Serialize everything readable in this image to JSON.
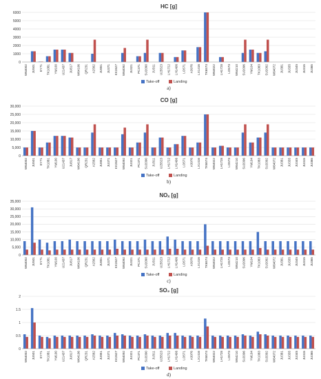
{
  "chart_data": [
    {
      "type": "bar",
      "title": "HC [g]",
      "caption": "a)",
      "ylim": [
        0,
        6000
      ],
      "ytick_labels": [
        "0",
        "1000",
        "2000",
        "3000",
        "4000",
        "5000",
        "6000"
      ],
      "ytick_values": [
        0,
        1000,
        2000,
        3000,
        4000,
        5000,
        6000
      ],
      "grid": true,
      "legend": "bottom",
      "categories": [
        "W64002",
        "JU501",
        "EY71",
        "TK1081",
        "YM100",
        "U21437",
        "JU817",
        "W64106",
        "QR231",
        "A2562",
        "JU851",
        "JU371",
        "KK2627",
        "W64092",
        "JU321",
        "PC371",
        "SU2090",
        "JU311",
        "U25523",
        "LH1722",
        "LH1406",
        "LO571",
        "A3976",
        "LX1416",
        "TK6574",
        "W64022",
        "LH1728",
        "LO573",
        "W64210",
        "SU2096",
        "YM104",
        "TK1083",
        "SU2092",
        "W64072",
        "JU381",
        "JU335",
        "JU345",
        "JU315",
        "JU365"
      ],
      "series": [
        {
          "name": "Take-off",
          "color": "#4472C4",
          "values": [
            0,
            1300,
            50,
            700,
            1500,
            1500,
            1100,
            0,
            0,
            1000,
            0,
            0,
            0,
            1100,
            0,
            700,
            1100,
            0,
            1100,
            0,
            600,
            1400,
            0,
            1800,
            6000,
            0,
            600,
            0,
            0,
            1100,
            1500,
            1100,
            1300,
            0,
            0,
            0,
            0,
            0,
            0
          ]
        },
        {
          "name": "Landing",
          "color": "#C0504D",
          "values": [
            0,
            1300,
            50,
            700,
            1500,
            1500,
            1100,
            0,
            0,
            2700,
            0,
            0,
            0,
            1700,
            0,
            700,
            2700,
            0,
            1100,
            0,
            600,
            1400,
            0,
            1800,
            6000,
            0,
            600,
            0,
            0,
            2700,
            1500,
            1100,
            2700,
            0,
            0,
            0,
            0,
            0,
            0
          ]
        }
      ]
    },
    {
      "type": "bar",
      "title": "CO [g]",
      "caption": "b)",
      "ylim": [
        0,
        30000
      ],
      "ytick_labels": [
        "0",
        "5,000",
        "10,000",
        "15,000",
        "20,000",
        "25,000",
        "30,000"
      ],
      "ytick_values": [
        0,
        5000,
        10000,
        15000,
        20000,
        25000,
        30000
      ],
      "grid": true,
      "legend": "bottom",
      "categories": [
        "W64002",
        "JU501",
        "EY71",
        "TK1081",
        "YM100",
        "U21437",
        "JU817",
        "W64106",
        "QR231",
        "A2562",
        "JU851",
        "JU371",
        "KK2627",
        "W64092",
        "JU321",
        "PC371",
        "SU2090",
        "JU311",
        "U25523",
        "LH1722",
        "LH1406",
        "LO571",
        "A3976",
        "LX1416",
        "TK6574",
        "W64022",
        "LH1728",
        "LO573",
        "W64210",
        "SU2096",
        "YM104",
        "TK1083",
        "SU2092",
        "W64072",
        "JU381",
        "JU335",
        "JU345",
        "JU315",
        "JU365"
      ],
      "series": [
        {
          "name": "Take-off",
          "color": "#4472C4",
          "values": [
            5000,
            15000,
            5000,
            8000,
            12000,
            12000,
            11000,
            5000,
            5000,
            14000,
            5000,
            5000,
            5000,
            13000,
            5000,
            8000,
            14000,
            5000,
            11000,
            5000,
            7000,
            12000,
            5000,
            8000,
            25000,
            5000,
            6000,
            5000,
            5000,
            14000,
            8000,
            11000,
            14000,
            5000,
            5000,
            5000,
            5000,
            5000,
            5000
          ]
        },
        {
          "name": "Landing",
          "color": "#C0504D",
          "values": [
            5000,
            15000,
            5000,
            8000,
            12000,
            12000,
            11000,
            5000,
            5000,
            19000,
            5000,
            5000,
            5000,
            17000,
            5000,
            8000,
            19000,
            5000,
            11000,
            5000,
            7000,
            12000,
            5000,
            8000,
            25000,
            5000,
            6000,
            5000,
            5000,
            19000,
            8000,
            11000,
            19000,
            5000,
            5000,
            5000,
            5000,
            5000,
            5000
          ]
        }
      ]
    },
    {
      "type": "bar",
      "title": "NOₓ [g]",
      "caption": "c)",
      "ylim": [
        0,
        35000
      ],
      "ytick_labels": [
        "0",
        "5,000",
        "10,000",
        "15,000",
        "20,000",
        "25,000",
        "30,000",
        "35,000"
      ],
      "ytick_values": [
        0,
        5000,
        10000,
        15000,
        20000,
        25000,
        30000,
        35000
      ],
      "grid": true,
      "legend": "bottom",
      "categories": [
        "W64002",
        "JU501",
        "EY71",
        "TK1081",
        "YM100",
        "U21437",
        "JU817",
        "W64106",
        "QR231",
        "A2562",
        "JU851",
        "JU371",
        "KK2627",
        "W64092",
        "JU321",
        "PC371",
        "SU2090",
        "JU311",
        "U25523",
        "LH1722",
        "LH1406",
        "LO571",
        "A3976",
        "LX1416",
        "TK6574",
        "W64022",
        "LH1728",
        "LO573",
        "W64210",
        "SU2096",
        "YM104",
        "TK1083",
        "SU2092",
        "W64072",
        "JU381",
        "JU335",
        "JU345",
        "JU315",
        "JU365"
      ],
      "series": [
        {
          "name": "Take-off",
          "color": "#4472C4",
          "values": [
            9000,
            31000,
            10000,
            8000,
            9000,
            9000,
            10000,
            9000,
            9000,
            9000,
            9000,
            9000,
            10000,
            9000,
            9000,
            9000,
            10000,
            9000,
            9000,
            12000,
            10000,
            9000,
            9000,
            9000,
            20000,
            9000,
            9000,
            9000,
            9000,
            9000,
            9000,
            15000,
            9000,
            9000,
            9000,
            9000,
            9000,
            9000,
            9000
          ]
        },
        {
          "name": "Landing",
          "color": "#C0504D",
          "values": [
            3500,
            8000,
            3500,
            3000,
            3500,
            3500,
            3500,
            3500,
            3500,
            3500,
            3500,
            3500,
            4000,
            3500,
            3500,
            3500,
            3500,
            3500,
            3500,
            4000,
            4000,
            3500,
            3500,
            3500,
            6000,
            3500,
            3500,
            3500,
            3500,
            3500,
            3500,
            4500,
            3500,
            3500,
            3500,
            3500,
            3500,
            3500,
            3500
          ]
        }
      ]
    },
    {
      "type": "bar",
      "title": "SO₂ [g]",
      "caption": "d)",
      "ylim": [
        0,
        2
      ],
      "ytick_labels": [
        "0",
        "0.5",
        "1",
        "1.5",
        "2"
      ],
      "ytick_values": [
        0,
        0.5,
        1,
        1.5,
        2
      ],
      "grid": true,
      "legend": "bottom",
      "categories": [
        "W64002",
        "JU501",
        "EY71",
        "TK1081",
        "YM100",
        "U21437",
        "JU817",
        "W64106",
        "QR231",
        "A2562",
        "JU851",
        "JU371",
        "KK2627",
        "W64092",
        "JU321",
        "PC371",
        "SU2090",
        "JU311",
        "U25523",
        "LH1722",
        "LH1406",
        "LO571",
        "A3976",
        "LX1416",
        "TK6574",
        "W64022",
        "LH1728",
        "LO573",
        "W64210",
        "SU2096",
        "YM104",
        "TK1083",
        "SU2092",
        "W64072",
        "JU381",
        "JU335",
        "JU345",
        "JU315",
        "JU365"
      ],
      "series": [
        {
          "name": "Take-off",
          "color": "#4472C4",
          "values": [
            0.55,
            1.55,
            0.5,
            0.45,
            0.5,
            0.5,
            0.5,
            0.5,
            0.5,
            0.55,
            0.5,
            0.5,
            0.6,
            0.55,
            0.5,
            0.5,
            0.55,
            0.5,
            0.5,
            0.6,
            0.6,
            0.5,
            0.5,
            0.5,
            1.15,
            0.5,
            0.5,
            0.5,
            0.5,
            0.55,
            0.5,
            0.65,
            0.55,
            0.5,
            0.5,
            0.5,
            0.5,
            0.5,
            0.5
          ]
        },
        {
          "name": "Landing",
          "color": "#C0504D",
          "values": [
            0.45,
            1.0,
            0.45,
            0.4,
            0.45,
            0.45,
            0.45,
            0.45,
            0.45,
            0.5,
            0.45,
            0.45,
            0.5,
            0.5,
            0.45,
            0.45,
            0.5,
            0.45,
            0.45,
            0.5,
            0.5,
            0.45,
            0.45,
            0.45,
            0.85,
            0.45,
            0.45,
            0.45,
            0.45,
            0.5,
            0.45,
            0.55,
            0.5,
            0.45,
            0.45,
            0.45,
            0.45,
            0.45,
            0.45
          ]
        }
      ]
    }
  ]
}
